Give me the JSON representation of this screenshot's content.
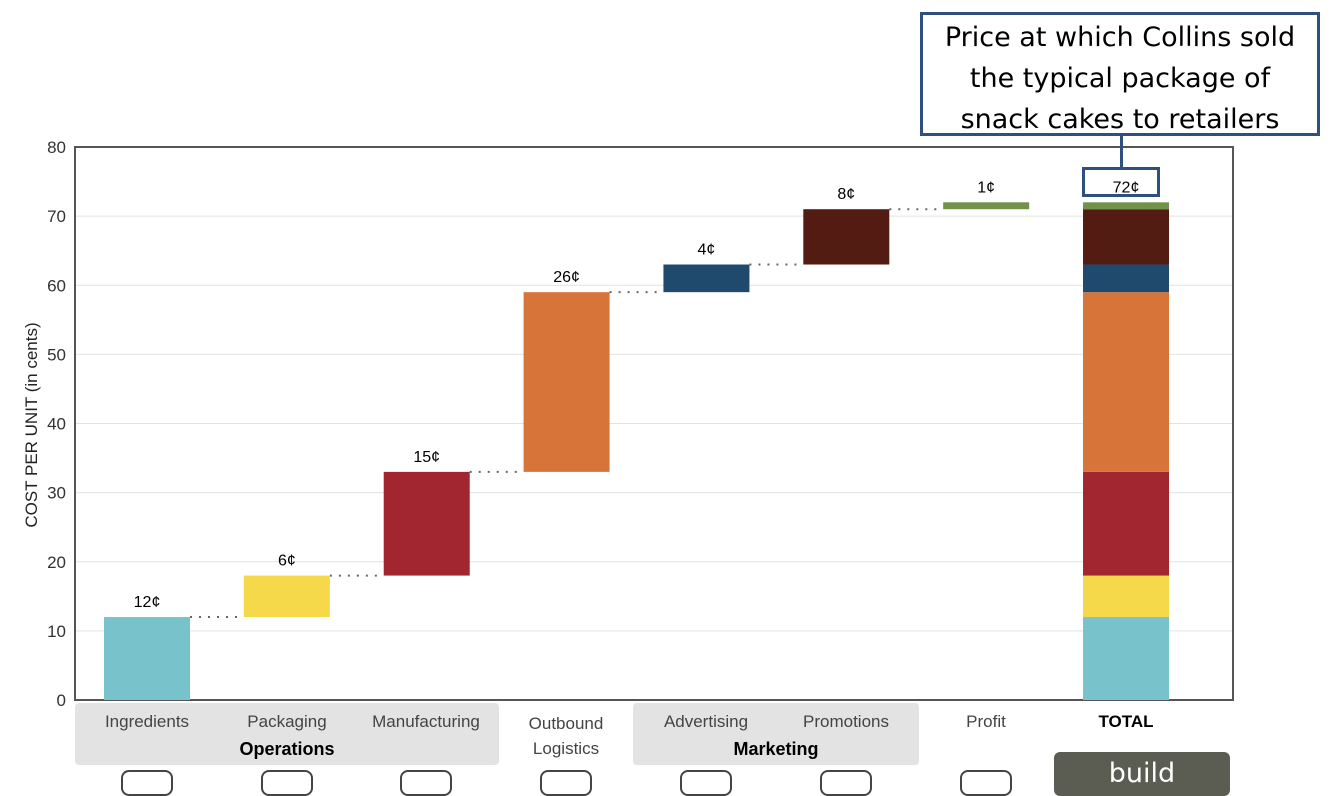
{
  "chart_data": {
    "type": "waterfall",
    "ylabel": "COST PER UNIT (in cents)",
    "ylim": [
      0,
      80
    ],
    "yticks": [
      0,
      10,
      20,
      30,
      40,
      50,
      60,
      70,
      80
    ],
    "grid": true,
    "categories": [
      "Ingredients",
      "Packaging",
      "Manufacturing",
      "Outbound Logistics",
      "Advertising",
      "Promotions",
      "Profit",
      "TOTAL"
    ],
    "values": [
      12,
      6,
      15,
      26,
      4,
      8,
      1,
      72
    ],
    "data_labels": [
      "12¢",
      "6¢",
      "15¢",
      "26¢",
      "4¢",
      "8¢",
      "1¢",
      "72¢"
    ],
    "colors": [
      "#78c2cc",
      "#f6d84b",
      "#a1262f",
      "#d6743a",
      "#1f4a6e",
      "#521c13",
      "#72914a"
    ],
    "groups": [
      {
        "label": "Operations",
        "members": [
          "Ingredients",
          "Packaging",
          "Manufacturing"
        ]
      },
      {
        "label": "Marketing",
        "members": [
          "Advertising",
          "Promotions"
        ]
      }
    ]
  },
  "labels": {
    "cat0": "Ingredients",
    "cat1": "Packaging",
    "cat2": "Manufacturing",
    "cat3_line1": "Outbound",
    "cat3_line2": "Logistics",
    "cat4": "Advertising",
    "cat5": "Promotions",
    "cat6": "Profit",
    "cat7": "TOTAL",
    "group_operations": "Operations",
    "group_marketing": "Marketing"
  },
  "callout": {
    "line1": "Price at which Collins sold",
    "line2": "the typical package of",
    "line3": "snack cakes to retailers"
  },
  "build_button": "build"
}
